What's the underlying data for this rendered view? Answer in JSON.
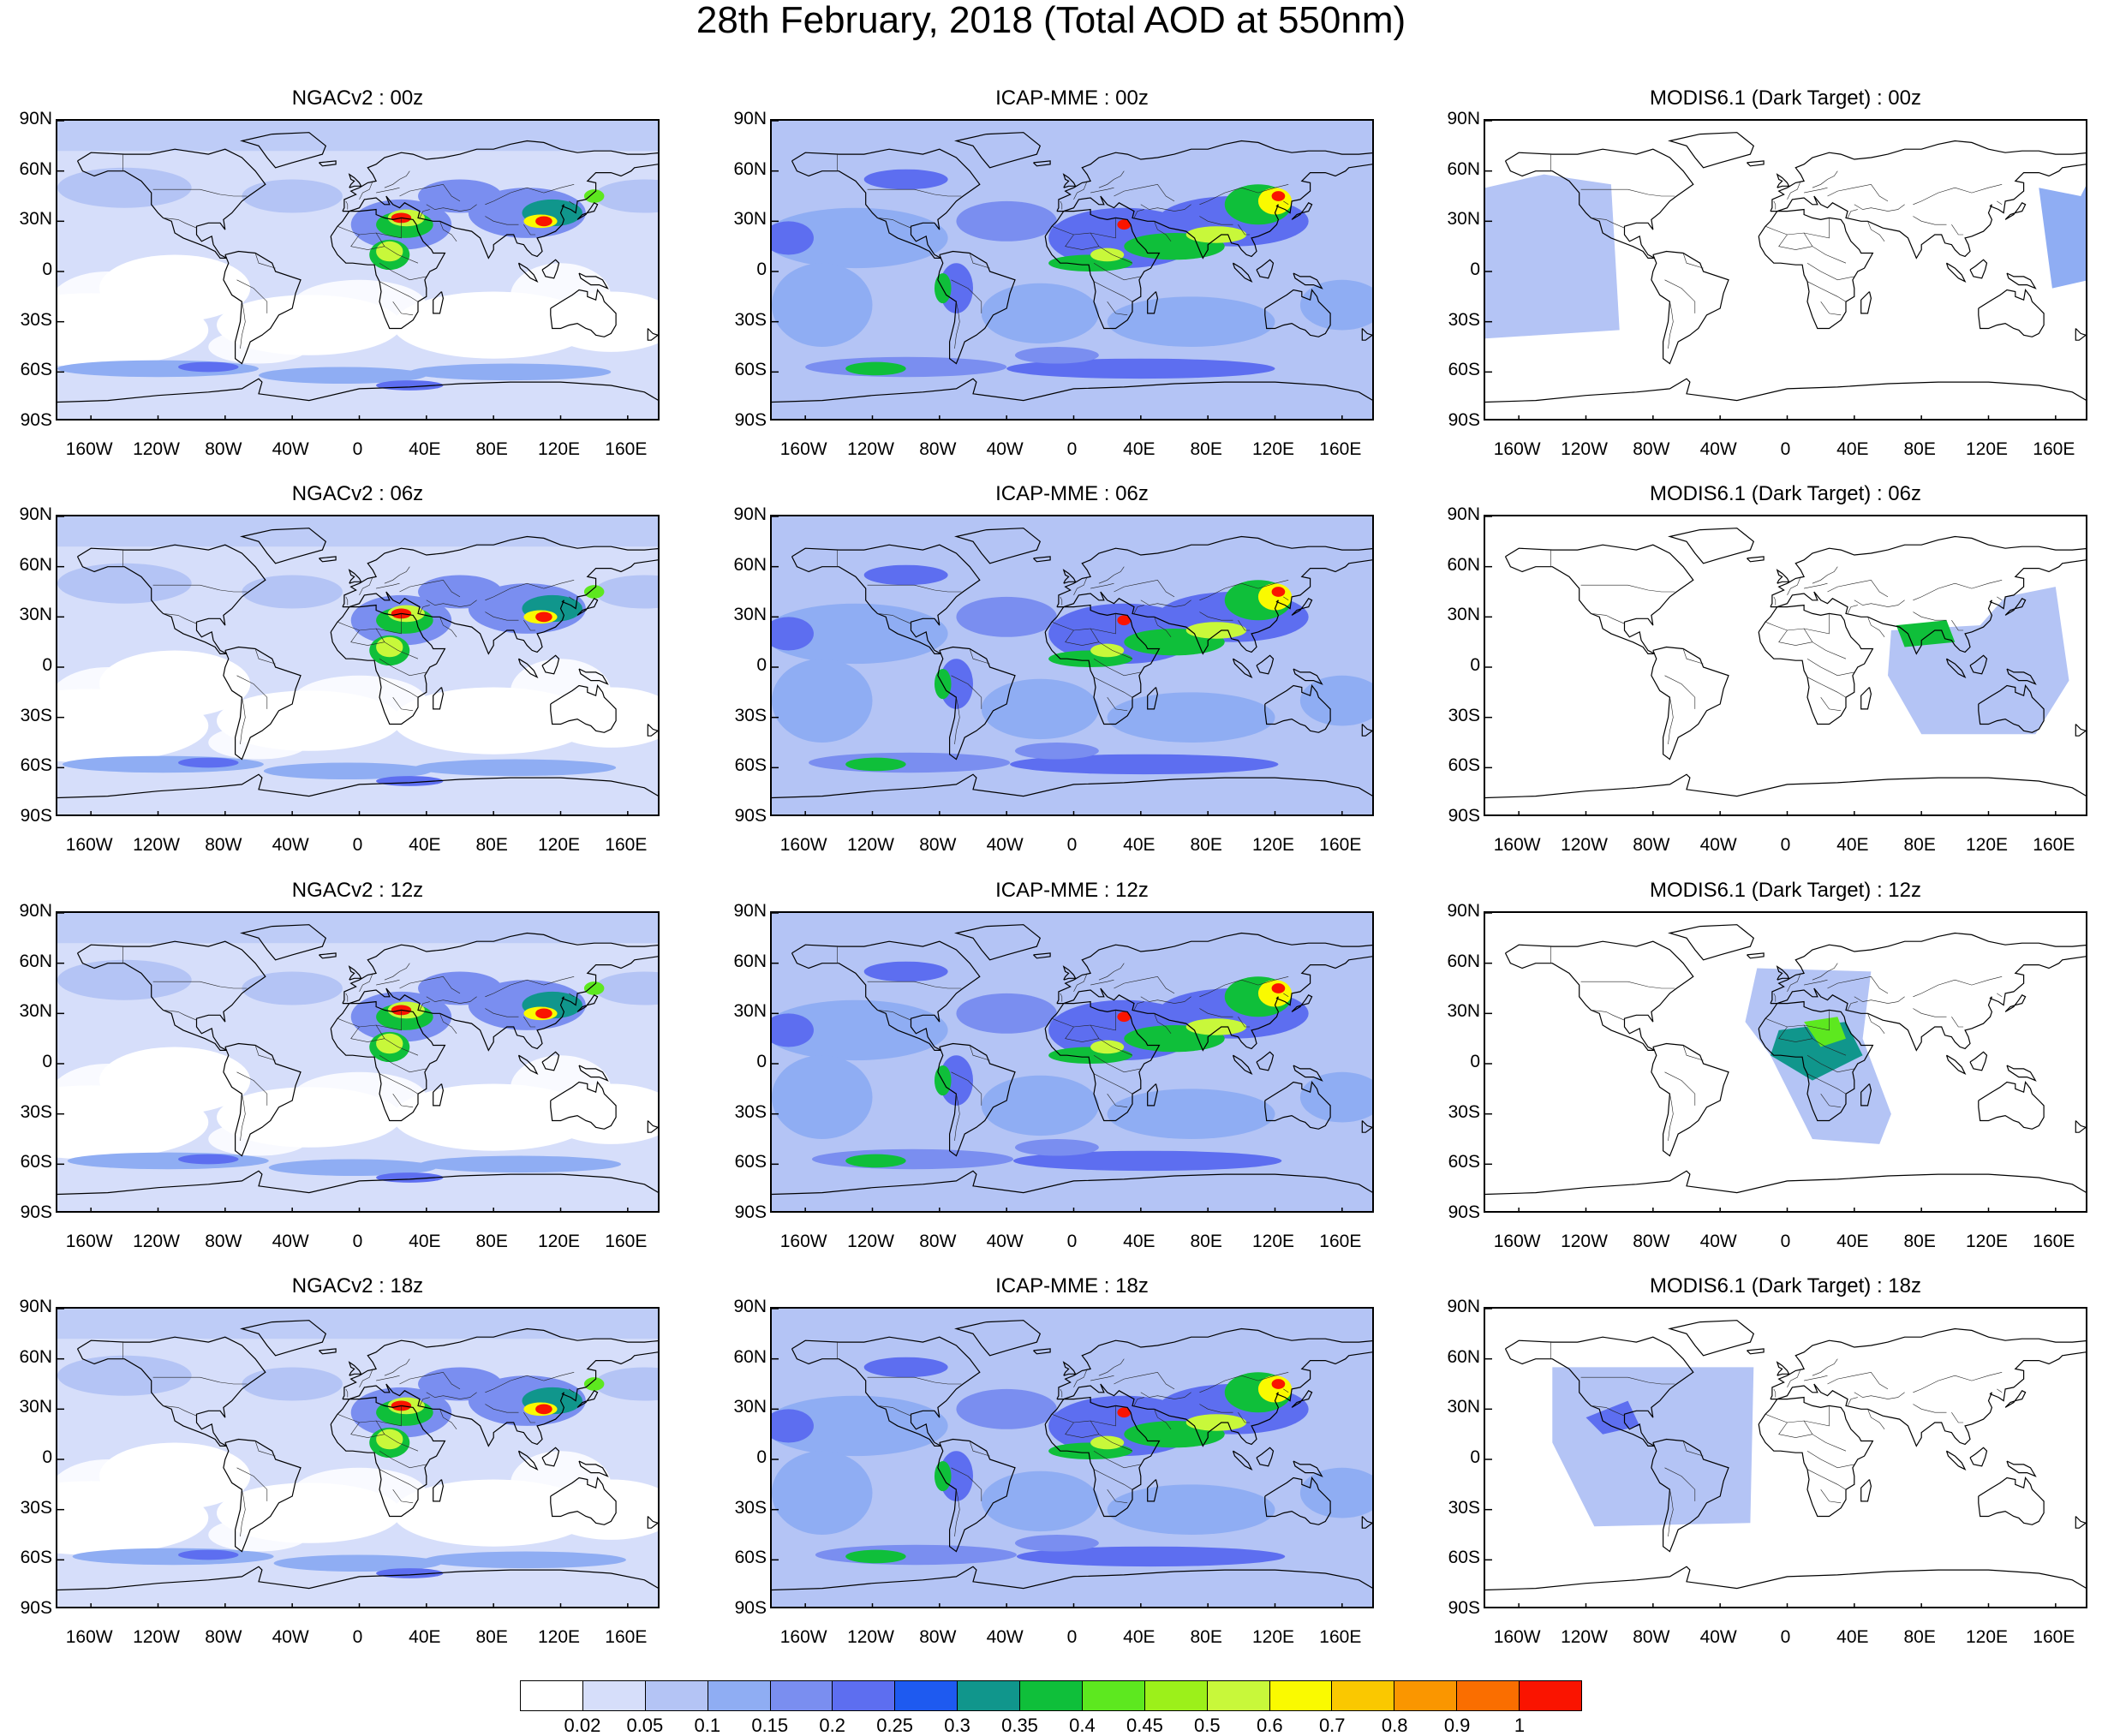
{
  "title": "28th February, 2018 (Total AOD at 550nm)",
  "lat_ticks": [
    "90N",
    "60N",
    "30N",
    "0",
    "30S",
    "60S",
    "90S"
  ],
  "lon_ticks": [
    "160W",
    "120W",
    "80W",
    "40W",
    "0",
    "40E",
    "80E",
    "120E",
    "160E"
  ],
  "panels": [
    {
      "title": "NGACv2 : 00z",
      "model": "NGACv2",
      "time": "00z"
    },
    {
      "title": "ICAP-MME : 00z",
      "model": "ICAP-MME",
      "time": "00z"
    },
    {
      "title": "MODIS6.1 (Dark Target) : 00z",
      "model": "MODIS6.1 (Dark Target)",
      "time": "00z"
    },
    {
      "title": "NGACv2 : 06z",
      "model": "NGACv2",
      "time": "06z"
    },
    {
      "title": "ICAP-MME : 06z",
      "model": "ICAP-MME",
      "time": "06z"
    },
    {
      "title": "MODIS6.1 (Dark Target) : 06z",
      "model": "MODIS6.1 (Dark Target)",
      "time": "06z"
    },
    {
      "title": "NGACv2 : 12z",
      "model": "NGACv2",
      "time": "12z"
    },
    {
      "title": "ICAP-MME : 12z",
      "model": "ICAP-MME",
      "time": "12z"
    },
    {
      "title": "MODIS6.1 (Dark Target) : 12z",
      "model": "MODIS6.1 (Dark Target)",
      "time": "12z"
    },
    {
      "title": "NGACv2 : 18z",
      "model": "NGACv2",
      "time": "18z"
    },
    {
      "title": "ICAP-MME : 18z",
      "model": "ICAP-MME",
      "time": "18z"
    },
    {
      "title": "MODIS6.1 (Dark Target) : 18z",
      "model": "MODIS6.1 (Dark Target)",
      "time": "18z"
    }
  ],
  "colorbar": {
    "labels": [
      "0.02",
      "0.05",
      "0.1",
      "0.15",
      "0.2",
      "0.25",
      "0.3",
      "0.35",
      "0.4",
      "0.45",
      "0.5",
      "0.6",
      "0.7",
      "0.8",
      "0.9",
      "1"
    ],
    "colors": [
      "#ffffff",
      "#d6defa",
      "#b4c4f5",
      "#8fadf3",
      "#7a8ef0",
      "#5d6ef0",
      "#1e5af0",
      "#10968c",
      "#0fbf3a",
      "#5de81f",
      "#9cf01a",
      "#c8f83a",
      "#fafa00",
      "#fac800",
      "#fa9600",
      "#fa6e00",
      "#fa1400"
    ]
  }
}
